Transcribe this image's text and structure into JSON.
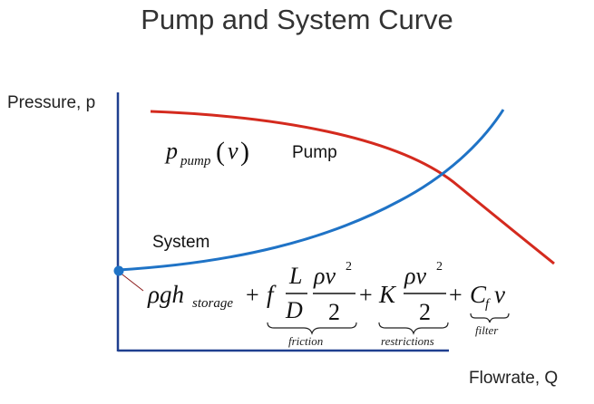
{
  "title": "Pump and System Curve",
  "axes": {
    "y_label": "Pressure, p",
    "x_label": "Flowrate, Q"
  },
  "curves": {
    "pump": {
      "label": "Pump",
      "color": "#d42a1e"
    },
    "system": {
      "label": "System",
      "color": "#1f73c6"
    }
  },
  "equation_pump": {
    "symbol": "p",
    "subscript": "pump",
    "argument": "v"
  },
  "equation_system": {
    "storage_term": "ρgh",
    "storage_sub": "storage",
    "friction_coef": "f",
    "friction_num": "L",
    "friction_den": "D",
    "rho_v2_num": "ρv",
    "exponent": "2",
    "two": "2",
    "plus": "+",
    "restriction_coef": "K",
    "filter_coef": "C",
    "filter_sub": "f",
    "filter_var": "v",
    "brace_friction": "friction",
    "brace_restrictions": "restrictions",
    "brace_filter": "filter"
  },
  "colors": {
    "axis": "#1f3f8f",
    "marker": "#1f73c6",
    "leader": "#8b1a1a"
  }
}
